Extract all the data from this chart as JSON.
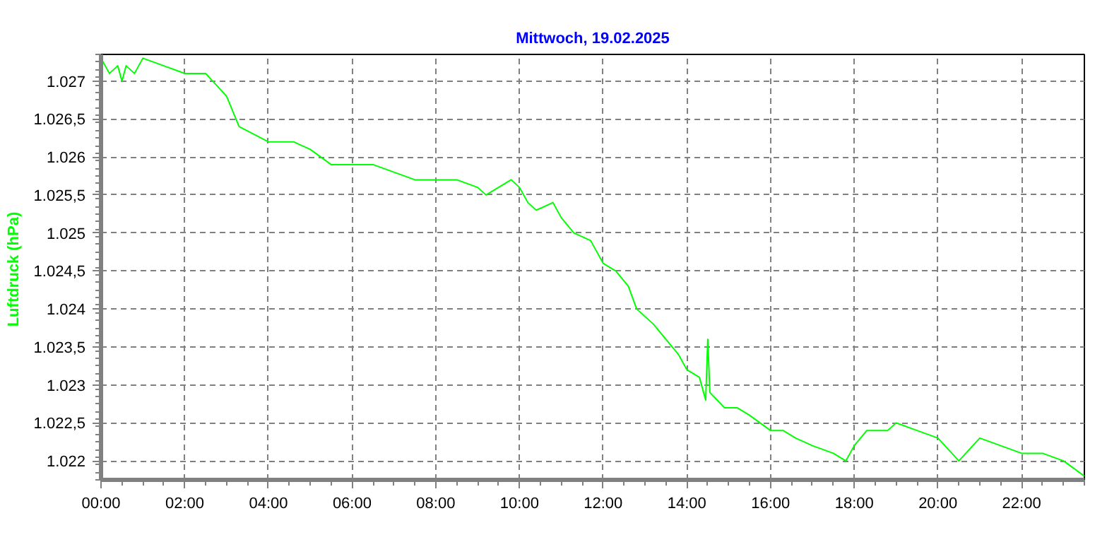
{
  "chart_data": {
    "type": "line",
    "title": "Mittwoch, 19.02.2025",
    "ylabel": "Luftdruck  (hPa)",
    "x": [
      0.0,
      0.2,
      0.4,
      0.5,
      0.6,
      0.8,
      0.9,
      1.0,
      1.5,
      2.0,
      2.5,
      3.0,
      3.3,
      4.0,
      4.6,
      5.0,
      5.5,
      6.5,
      7.0,
      7.5,
      8.5,
      9.0,
      9.2,
      9.5,
      9.8,
      10.0,
      10.2,
      10.4,
      10.8,
      11.0,
      11.3,
      11.7,
      12.0,
      12.3,
      12.6,
      12.8,
      13.2,
      13.5,
      13.8,
      14.0,
      14.3,
      14.45,
      14.5,
      14.55,
      14.9,
      15.2,
      15.5,
      16.0,
      16.3,
      16.6,
      17.0,
      17.5,
      17.8,
      18.0,
      18.3,
      18.8,
      19.0,
      19.5,
      20.0,
      20.5,
      21.0,
      21.5,
      22.0,
      22.5,
      23.0,
      23.5
    ],
    "series": [
      {
        "color": "#00ff00",
        "values": [
          1027.3,
          1027.1,
          1027.2,
          1027.0,
          1027.2,
          1027.1,
          1027.2,
          1027.3,
          1027.2,
          1027.1,
          1027.1,
          1026.8,
          1026.4,
          1026.2,
          1026.2,
          1026.1,
          1025.9,
          1025.9,
          1025.8,
          1025.7,
          1025.7,
          1025.6,
          1025.5,
          1025.6,
          1025.7,
          1025.6,
          1025.4,
          1025.3,
          1025.4,
          1025.2,
          1025.0,
          1024.9,
          1024.6,
          1024.5,
          1024.3,
          1024.0,
          1023.8,
          1023.6,
          1023.4,
          1023.2,
          1023.1,
          1022.8,
          1023.6,
          1022.9,
          1022.7,
          1022.7,
          1022.6,
          1022.4,
          1022.4,
          1022.3,
          1022.2,
          1022.1,
          1022.0,
          1022.2,
          1022.4,
          1022.4,
          1022.5,
          1022.4,
          1022.3,
          1022.0,
          1022.3,
          1022.2,
          1022.1,
          1022.1,
          1022.0,
          1021.8
        ]
      }
    ],
    "xlim": [
      0,
      23.5
    ],
    "ylim": [
      1021.75,
      1027.35
    ],
    "xticks": [
      {
        "value": 0,
        "label": "00:00"
      },
      {
        "value": 2,
        "label": "02:00"
      },
      {
        "value": 4,
        "label": "04:00"
      },
      {
        "value": 6,
        "label": "06:00"
      },
      {
        "value": 8,
        "label": "08:00"
      },
      {
        "value": 10,
        "label": "10:00"
      },
      {
        "value": 12,
        "label": "12:00"
      },
      {
        "value": 14,
        "label": "14:00"
      },
      {
        "value": 16,
        "label": "16:00"
      },
      {
        "value": 18,
        "label": "18:00"
      },
      {
        "value": 20,
        "label": "20:00"
      },
      {
        "value": 22,
        "label": "22:00"
      }
    ],
    "yticks": [
      {
        "value": 1022,
        "label": "1.022"
      },
      {
        "value": 1022.5,
        "label": "1.022,5"
      },
      {
        "value": 1023,
        "label": "1.023"
      },
      {
        "value": 1023.5,
        "label": "1.023,5"
      },
      {
        "value": 1024,
        "label": "1.024"
      },
      {
        "value": 1024.5,
        "label": "1.024,5"
      },
      {
        "value": 1025,
        "label": "1.025"
      },
      {
        "value": 1025.5,
        "label": "1.025,5"
      },
      {
        "value": 1026,
        "label": "1.026"
      },
      {
        "value": 1026.5,
        "label": "1.026,5"
      },
      {
        "value": 1027,
        "label": "1.027"
      }
    ],
    "grid": true
  }
}
